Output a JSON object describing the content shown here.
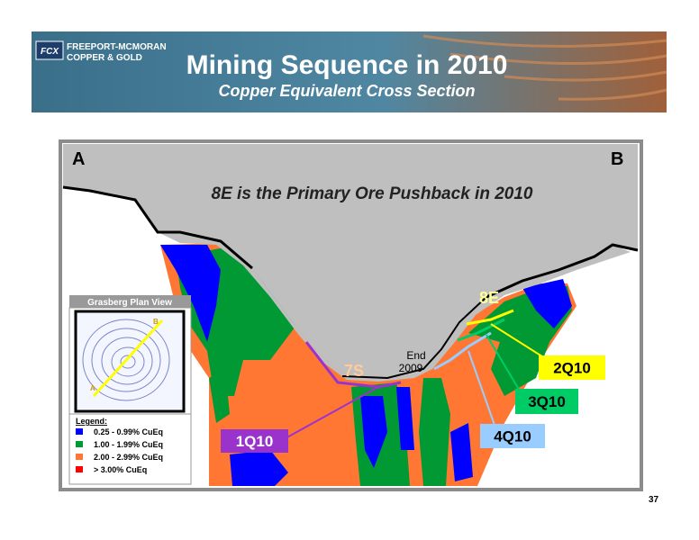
{
  "header": {
    "company": "Freeport-McMoRan",
    "division": "Copper & Gold",
    "logo": "FCX",
    "title": "Mining Sequence in 2010",
    "subtitle": "Copper Equivalent Cross Section"
  },
  "section": {
    "start": "A",
    "end": "B",
    "headline": "8E is the Primary Ore Pushback in 2010",
    "pushback": "8E",
    "west": "7S",
    "end_mark": [
      "End",
      "2009"
    ],
    "quarters": [
      {
        "text": "1Q10",
        "color": "#9933cc",
        "text_color": "#ffffff"
      },
      {
        "text": "2Q10",
        "color": "#ffff00",
        "text_color": "#000000"
      },
      {
        "text": "3Q10",
        "color": "#00cc66",
        "text_color": "#000000"
      },
      {
        "text": "4Q10",
        "color": "#99ccff",
        "text_color": "#000000"
      }
    ]
  },
  "inset": {
    "title": "Grasberg Plan View",
    "a": "A",
    "b": "B"
  },
  "legend": {
    "title": "Legend:",
    "items": [
      {
        "label": "0.25 - 0.99%  CuEq",
        "color": "#0000ff"
      },
      {
        "label": "1.00 - 1.99%  CuEq",
        "color": "#009933"
      },
      {
        "label": "2.00 - 2.99%  CuEq",
        "color": "#ff7733"
      },
      {
        "label": "> 3.00%  CuEq",
        "color": "#ff0000"
      }
    ]
  },
  "page_number": "37"
}
